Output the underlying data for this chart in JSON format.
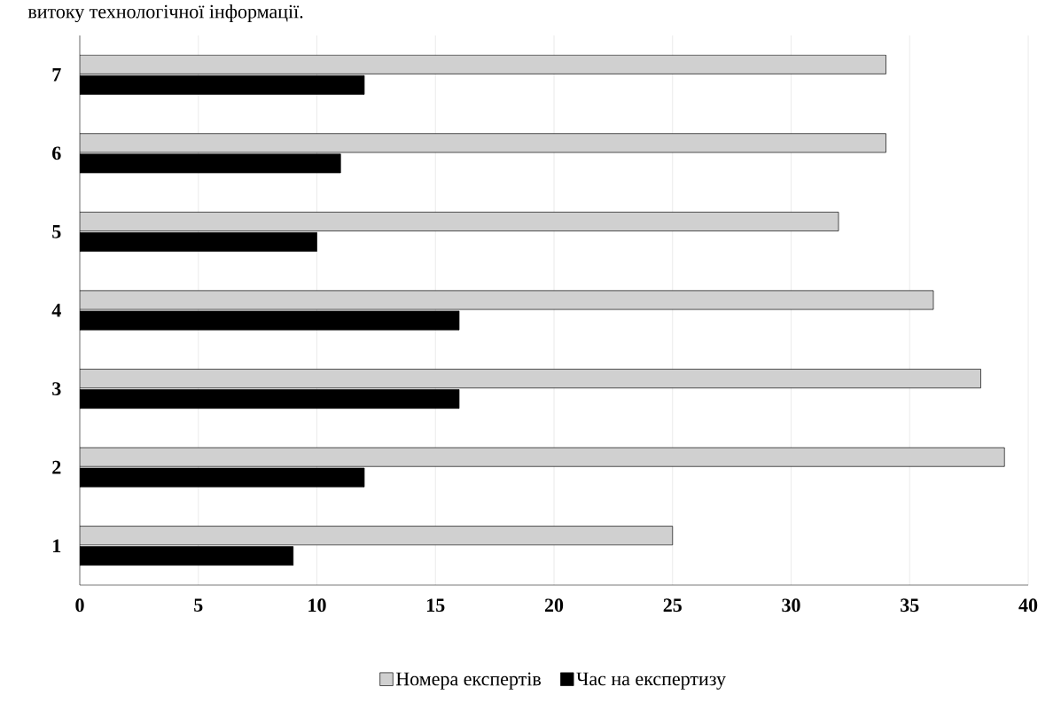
{
  "chart_data": {
    "type": "bar",
    "orientation": "horizontal",
    "annotations": [
      "витоку технологічної інформації."
    ],
    "categories": [
      "7",
      "6",
      "5",
      "4",
      "3",
      "2",
      "1"
    ],
    "series": [
      {
        "name": "Номера експертів",
        "color": "#d0d0d0",
        "values": [
          34,
          34,
          32,
          36,
          38,
          39,
          25
        ]
      },
      {
        "name": "Час на експертизу",
        "color": "#000000",
        "values": [
          12,
          11,
          10,
          16,
          16,
          12,
          9
        ]
      }
    ],
    "xlim": [
      0,
      40
    ],
    "xticks": [
      0,
      5,
      10,
      15,
      20,
      25,
      30,
      35,
      40
    ],
    "grid": "x",
    "legend": "bottom"
  }
}
